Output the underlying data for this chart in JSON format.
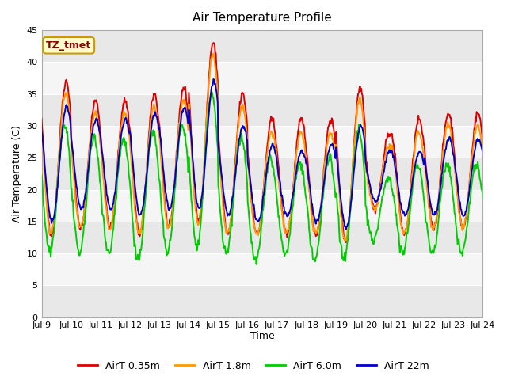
{
  "title": "Air Temperature Profile",
  "xlabel": "Time",
  "ylabel": "Air Temperature (C)",
  "ylim": [
    0,
    45
  ],
  "yticks": [
    0,
    5,
    10,
    15,
    20,
    25,
    30,
    35,
    40,
    45
  ],
  "x_start_day": 9,
  "x_end_day": 24,
  "x_tick_days": [
    9,
    10,
    11,
    12,
    13,
    14,
    15,
    16,
    17,
    18,
    19,
    20,
    21,
    22,
    23,
    24
  ],
  "x_tick_labels": [
    "Jul 9",
    "Jul 10",
    "Jul 11",
    "Jul 12",
    "Jul 13",
    "Jul 14",
    "Jul 15",
    "Jul 16",
    "Jul 17",
    "Jul 18",
    "Jul 19",
    "Jul 20",
    "Jul 21",
    "Jul 22",
    "Jul 23",
    "Jul 24"
  ],
  "series": [
    {
      "label": "AirT 0.35m",
      "color": "#dd0000",
      "lw": 1.4
    },
    {
      "label": "AirT 1.8m",
      "color": "#ff9900",
      "lw": 1.4
    },
    {
      "label": "AirT 6.0m",
      "color": "#00cc00",
      "lw": 1.4
    },
    {
      "label": "AirT 22m",
      "color": "#0000cc",
      "lw": 1.4
    }
  ],
  "annotation_text": "TZ_tmet",
  "annotation_box_facecolor": "#ffffcc",
  "annotation_box_edgecolor": "#cc9900",
  "fig_bg_color": "#ffffff",
  "band_colors": [
    "#e8e8e8",
    "#f5f5f5"
  ],
  "title_fontsize": 11,
  "label_fontsize": 9,
  "tick_fontsize": 8,
  "legend_fontsize": 9
}
